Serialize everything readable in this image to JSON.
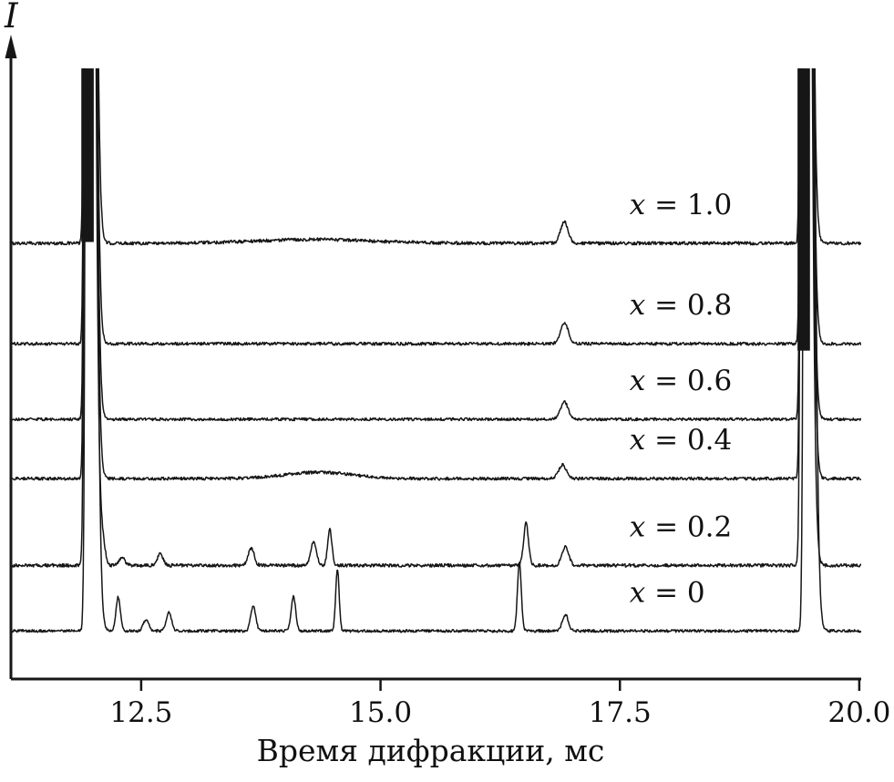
{
  "chart_data": {
    "type": "line",
    "xlabel": "Время дифракции, мс",
    "ylabel": "I",
    "x_unit": "мс",
    "x_range": [
      11.14,
      20.02
    ],
    "x_ticks": [
      12.5,
      15.0,
      17.5,
      20.0
    ],
    "x_tick_labels": [
      "12.5",
      "15.0",
      "17.5",
      "20.0"
    ],
    "grid": false,
    "legend": "inline-labels",
    "line_color": "#161616",
    "axis_color": "#161616",
    "background": "#ffffff",
    "series_label_x": 17.6,
    "series": [
      {
        "label": "x = 1.0",
        "offset": 0.698,
        "noise": 0.0026,
        "peaks": [
          {
            "x": 11.94,
            "h": 4,
            "w": 0.02,
            "wr": 0.05
          },
          {
            "x": 14.3,
            "h": 0.006,
            "w": 0.6
          },
          {
            "x": 16.92,
            "h": 0.034,
            "w": 0.04
          },
          {
            "x": 19.42,
            "h": 4,
            "w": 0.02,
            "wr": 0.05
          }
        ]
      },
      {
        "label": "x = 0.8",
        "offset": 0.537,
        "noise": 0.0024,
        "peaks": [
          {
            "x": 11.94,
            "h": 4,
            "w": 0.02,
            "wr": 0.05
          },
          {
            "x": 16.92,
            "h": 0.034,
            "w": 0.04
          },
          {
            "x": 19.42,
            "h": 4,
            "w": 0.02,
            "wr": 0.05
          }
        ]
      },
      {
        "label": "x = 0.6",
        "offset": 0.416,
        "noise": 0.0022,
        "peaks": [
          {
            "x": 11.94,
            "h": 4,
            "w": 0.02,
            "wr": 0.05
          },
          {
            "x": 16.92,
            "h": 0.028,
            "w": 0.04
          },
          {
            "x": 19.42,
            "h": 4,
            "w": 0.02,
            "wr": 0.05
          }
        ]
      },
      {
        "label": "x = 0.4",
        "offset": 0.321,
        "noise": 0.0024,
        "peaks": [
          {
            "x": 11.94,
            "h": 4,
            "w": 0.02,
            "wr": 0.05
          },
          {
            "x": 14.35,
            "h": 0.01,
            "w": 0.35
          },
          {
            "x": 16.9,
            "h": 0.022,
            "w": 0.04
          },
          {
            "x": 19.42,
            "h": 4,
            "w": 0.02,
            "wr": 0.05
          }
        ]
      },
      {
        "label": "x = 0.2",
        "offset": 0.182,
        "noise": 0.0026,
        "peaks": [
          {
            "x": 11.94,
            "h": 4,
            "w": 0.02,
            "wr": 0.05
          },
          {
            "x": 12.1,
            "h": 0.035,
            "w": 0.025
          },
          {
            "x": 12.3,
            "h": 0.012,
            "w": 0.03
          },
          {
            "x": 12.7,
            "h": 0.018,
            "w": 0.03
          },
          {
            "x": 13.65,
            "h": 0.028,
            "w": 0.03
          },
          {
            "x": 14.3,
            "h": 0.038,
            "w": 0.03
          },
          {
            "x": 14.47,
            "h": 0.058,
            "w": 0.022
          },
          {
            "x": 16.52,
            "h": 0.068,
            "w": 0.025
          },
          {
            "x": 16.93,
            "h": 0.03,
            "w": 0.035
          },
          {
            "x": 19.42,
            "h": 4,
            "w": 0.02,
            "wr": 0.05
          }
        ]
      },
      {
        "label": "x = 0",
        "offset": 0.077,
        "noise": 0.0022,
        "peaks": [
          {
            "x": 11.95,
            "h": 4,
            "w": 0.02,
            "wr": 0.05
          },
          {
            "x": 12.26,
            "h": 0.055,
            "w": 0.022
          },
          {
            "x": 12.55,
            "h": 0.018,
            "w": 0.028
          },
          {
            "x": 12.79,
            "h": 0.03,
            "w": 0.028
          },
          {
            "x": 13.67,
            "h": 0.04,
            "w": 0.026
          },
          {
            "x": 14.09,
            "h": 0.055,
            "w": 0.024
          },
          {
            "x": 14.55,
            "h": 0.1,
            "w": 0.018
          },
          {
            "x": 16.45,
            "h": 0.11,
            "w": 0.02
          },
          {
            "x": 16.93,
            "h": 0.026,
            "w": 0.032
          },
          {
            "x": 19.45,
            "h": 4,
            "w": 0.02,
            "wr": 0.05
          }
        ]
      }
    ],
    "saturated_regions": [
      {
        "x": 11.94,
        "half_width": 0.065,
        "span": [
          0.7,
          0.978
        ]
      },
      {
        "x": 19.42,
        "half_width": 0.065,
        "span": [
          0.526,
          0.978
        ]
      }
    ]
  }
}
